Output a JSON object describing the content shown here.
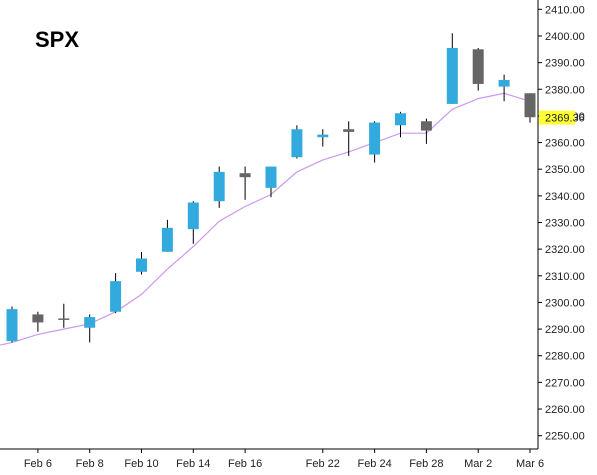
{
  "chart_data": {
    "type": "candlestick",
    "title": "SPX",
    "ylim": [
      2245,
      2412
    ],
    "y_ticks": [
      2250,
      2260,
      2270,
      2280,
      2290,
      2300,
      2310,
      2320,
      2330,
      2340,
      2350,
      2360,
      2370,
      2380,
      2390,
      2400,
      2410
    ],
    "y_tick_labels": [
      "2250.00",
      "2260.00",
      "2270.00",
      "2280.00",
      "2290.00",
      "2300.00",
      "2310.00",
      "2320.00",
      "2330.00",
      "2340.00",
      "2350.00",
      "2360.00",
      "2370.00",
      "2380.00",
      "2390.00",
      "2400.00",
      "2410.00"
    ],
    "x_tick_labels": [
      {
        "label": "Feb 6",
        "index": 1
      },
      {
        "label": "Feb 8",
        "index": 3
      },
      {
        "label": "Feb 10",
        "index": 5
      },
      {
        "label": "Feb 14",
        "index": 7
      },
      {
        "label": "Feb 16",
        "index": 9
      },
      {
        "label": "Feb 22",
        "index": 12
      },
      {
        "label": "Feb 24",
        "index": 14
      },
      {
        "label": "Feb 28",
        "index": 16
      },
      {
        "label": "Mar 2",
        "index": 18
      },
      {
        "label": "Mar 6",
        "index": 20
      }
    ],
    "last_value_label": "2369.36",
    "last_value": 2369.36,
    "up_color": "#33aadd",
    "down_color": "#666666",
    "ma_color": "#cc99ee",
    "candles": [
      {
        "o": 2285.5,
        "h": 2298.5,
        "l": 2285.0,
        "c": 2297.5
      },
      {
        "o": 2295.5,
        "h": 2296.5,
        "l": 2289.0,
        "c": 2292.5
      },
      {
        "o": 2294.0,
        "h": 2299.5,
        "l": 2290.5,
        "c": 2293.5
      },
      {
        "o": 2290.5,
        "h": 2295.5,
        "l": 2285.0,
        "c": 2294.5
      },
      {
        "o": 2296.5,
        "h": 2311.0,
        "l": 2296.0,
        "c": 2308.0
      },
      {
        "o": 2311.5,
        "h": 2319.0,
        "l": 2310.5,
        "c": 2316.5
      },
      {
        "o": 2319.0,
        "h": 2331.0,
        "l": 2319.0,
        "c": 2328.0
      },
      {
        "o": 2327.5,
        "h": 2338.0,
        "l": 2322.0,
        "c": 2337.5
      },
      {
        "o": 2338.0,
        "h": 2351.0,
        "l": 2335.5,
        "c": 2349.0
      },
      {
        "o": 2348.5,
        "h": 2351.0,
        "l": 2338.5,
        "c": 2347.0
      },
      {
        "o": 2343.0,
        "h": 2351.0,
        "l": 2339.5,
        "c": 2351.0
      },
      {
        "o": 2354.5,
        "h": 2366.5,
        "l": 2354.0,
        "c": 2365.0
      },
      {
        "o": 2362.0,
        "h": 2365.0,
        "l": 2358.5,
        "c": 2363.0
      },
      {
        "o": 2365.0,
        "h": 2368.0,
        "l": 2355.0,
        "c": 2364.0
      },
      {
        "o": 2355.5,
        "h": 2368.0,
        "l": 2352.5,
        "c": 2367.5
      },
      {
        "o": 2366.5,
        "h": 2371.5,
        "l": 2362.0,
        "c": 2371.0
      },
      {
        "o": 2368.0,
        "h": 2369.0,
        "l": 2359.5,
        "c": 2364.5
      },
      {
        "o": 2374.5,
        "h": 2401.0,
        "l": 2374.5,
        "c": 2395.5
      },
      {
        "o": 2395.0,
        "h": 2395.5,
        "l": 2379.5,
        "c": 2382.0
      },
      {
        "o": 2381.0,
        "h": 2385.5,
        "l": 2375.5,
        "c": 2383.5
      },
      {
        "o": 2378.5,
        "h": 2378.5,
        "l": 2367.5,
        "c": 2369.5
      }
    ],
    "ma": [
      2285.0,
      2288.0,
      2290.0,
      2292.0,
      2296.5,
      2303.0,
      2312.5,
      2321.0,
      2330.5,
      2336.0,
      2340.5,
      2349.0,
      2353.5,
      2356.5,
      2360.0,
      2363.5,
      2363.5,
      2372.5,
      2376.5,
      2378.5,
      2375.5
    ]
  }
}
